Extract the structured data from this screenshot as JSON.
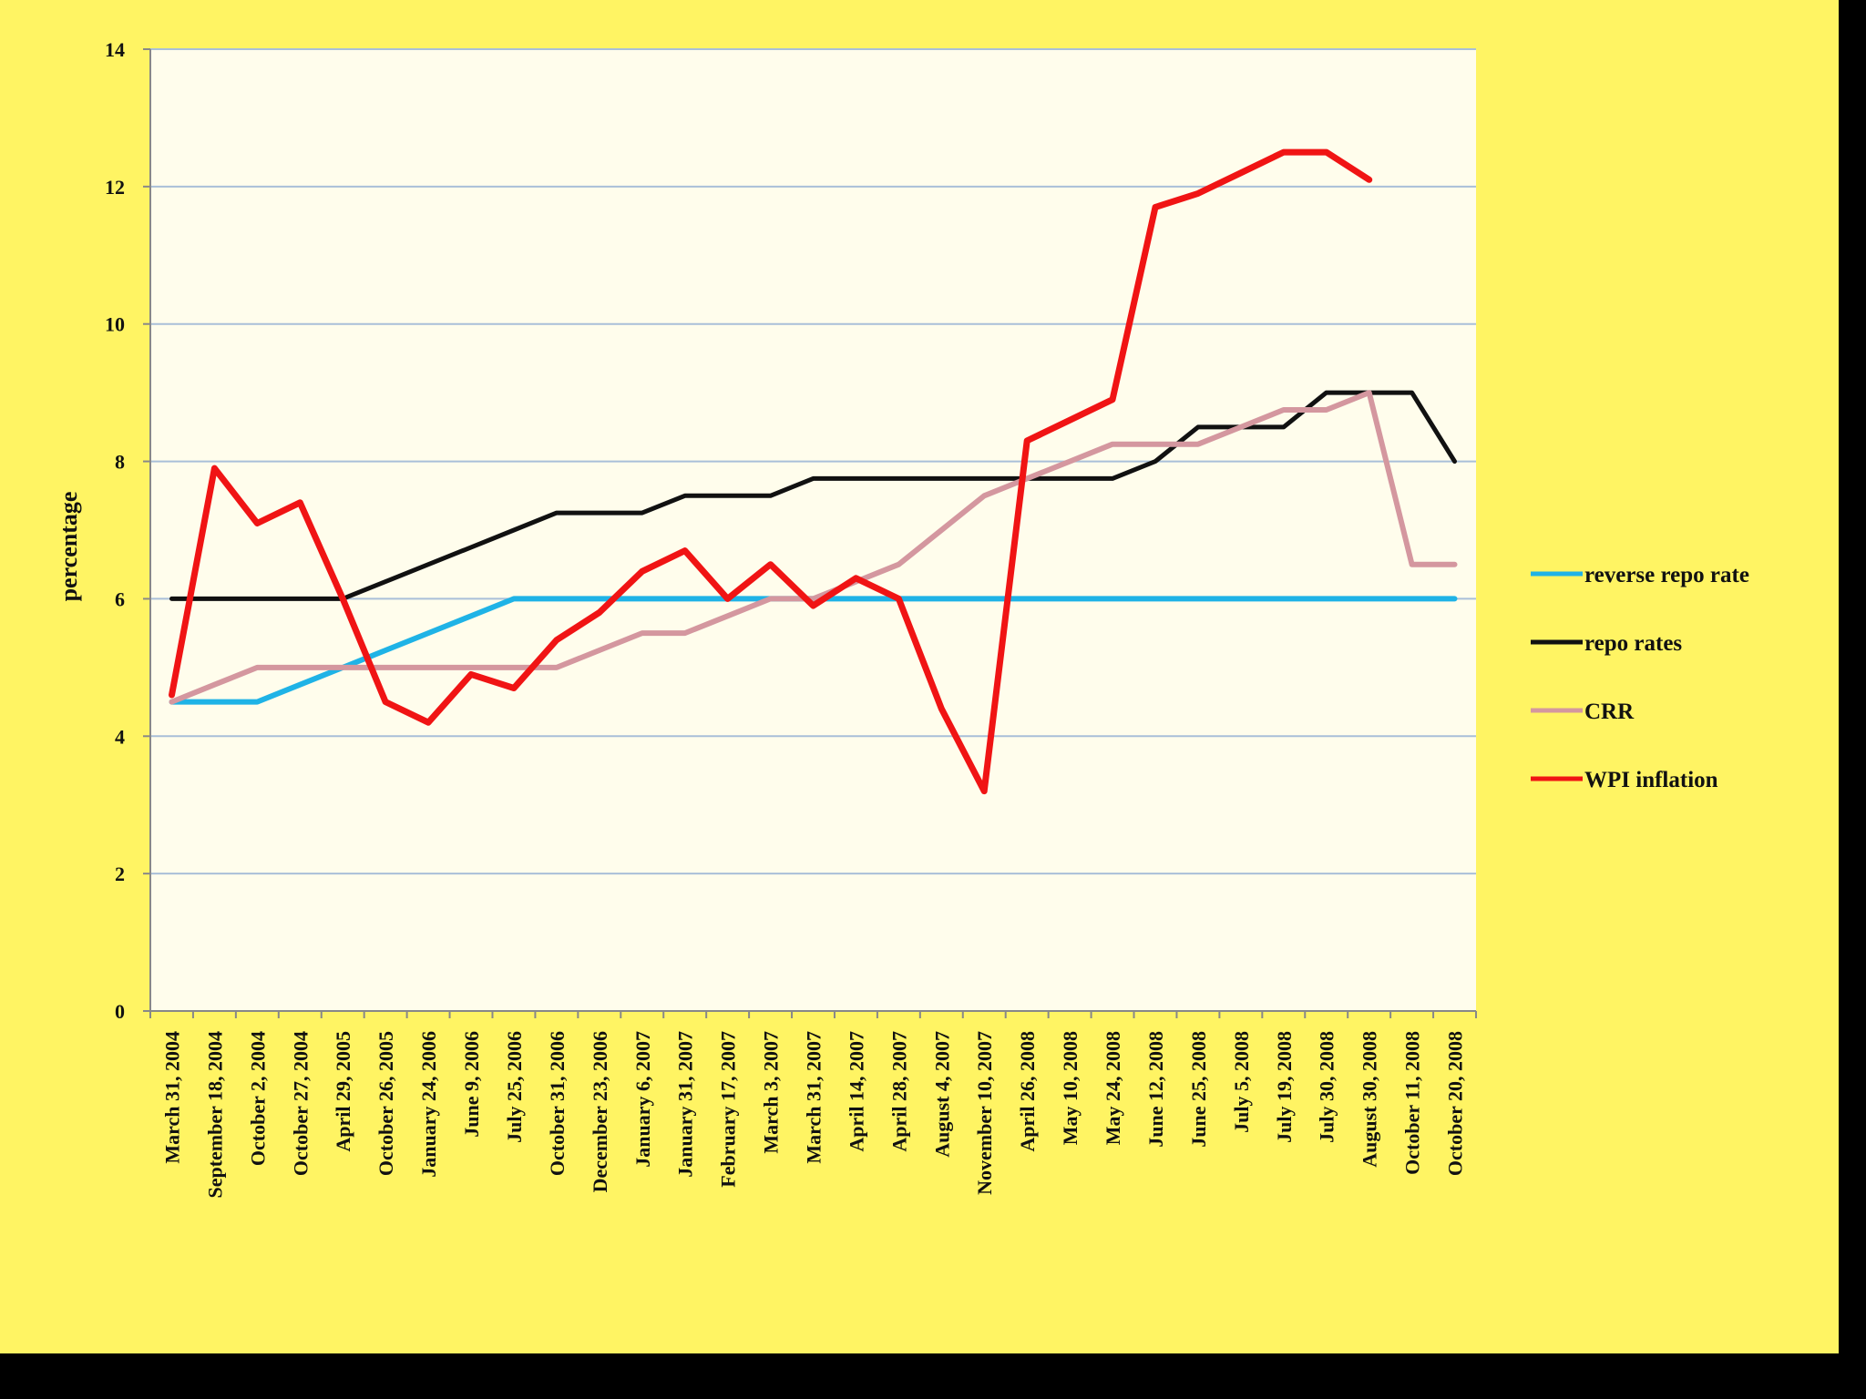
{
  "chart_data": {
    "type": "line",
    "title": "",
    "xlabel": "",
    "ylabel": "percentage",
    "ylim": [
      0,
      14
    ],
    "yticks": [
      0,
      2,
      4,
      6,
      8,
      10,
      12,
      14
    ],
    "grid": true,
    "legend_position": "right",
    "categories": [
      "March 31, 2004",
      "September 18, 2004",
      "October 2, 2004",
      "October 27, 2004",
      "April 29, 2005",
      "October 26, 2005",
      "January 24, 2006",
      "June 9, 2006",
      "July 25, 2006",
      "October 31, 2006",
      "December 23, 2006",
      "January 6, 2007",
      "January 31, 2007",
      "February 17, 2007",
      "March 3, 2007",
      "March 31, 2007",
      "April 14, 2007",
      "April 28, 2007",
      "August 4, 2007",
      "November 10, 2007",
      "April 26, 2008",
      "May 10, 2008",
      "May 24, 2008",
      "June 12, 2008",
      "June 25, 2008",
      "July 5, 2008",
      "July 19, 2008",
      "July 30, 2008",
      "August 30, 2008",
      "October 11, 2008",
      "October 20, 2008"
    ],
    "series": [
      {
        "name": "reverse repo rate",
        "color": "#1FB3E6",
        "values": [
          4.5,
          4.5,
          4.5,
          4.75,
          5,
          5.25,
          5.5,
          5.75,
          6,
          6,
          6,
          6,
          6,
          6,
          6,
          6,
          6,
          6,
          6,
          6,
          6,
          6,
          6,
          6,
          6,
          6,
          6,
          6,
          6,
          6,
          6
        ]
      },
      {
        "name": "repo rates",
        "color": "#111111",
        "values": [
          6,
          6,
          6,
          6,
          6,
          6.25,
          6.5,
          6.75,
          7,
          7.25,
          7.25,
          7.25,
          7.5,
          7.5,
          7.5,
          7.75,
          7.75,
          7.75,
          7.75,
          7.75,
          7.75,
          7.75,
          7.75,
          8,
          8.5,
          8.5,
          8.5,
          9,
          9,
          9,
          8
        ]
      },
      {
        "name": "CRR",
        "color": "#D4979F",
        "values": [
          4.5,
          4.75,
          5,
          5,
          5,
          5,
          5,
          5,
          5,
          5,
          5.25,
          5.5,
          5.5,
          5.75,
          6,
          6,
          6.25,
          6.5,
          7,
          7.5,
          7.75,
          8,
          8.25,
          8.25,
          8.25,
          8.5,
          8.75,
          8.75,
          9,
          6.5,
          6.5
        ]
      },
      {
        "name": "WPI inflation",
        "color": "#F01414",
        "values": [
          4.6,
          7.9,
          7.1,
          7.4,
          6.0,
          4.5,
          4.2,
          4.9,
          4.7,
          5.4,
          5.8,
          6.4,
          6.7,
          6.0,
          6.5,
          5.9,
          6.3,
          6.0,
          4.4,
          3.2,
          8.3,
          8.6,
          8.9,
          11.7,
          11.9,
          12.2,
          12.5,
          12.5,
          12.1,
          null,
          null
        ]
      }
    ]
  }
}
